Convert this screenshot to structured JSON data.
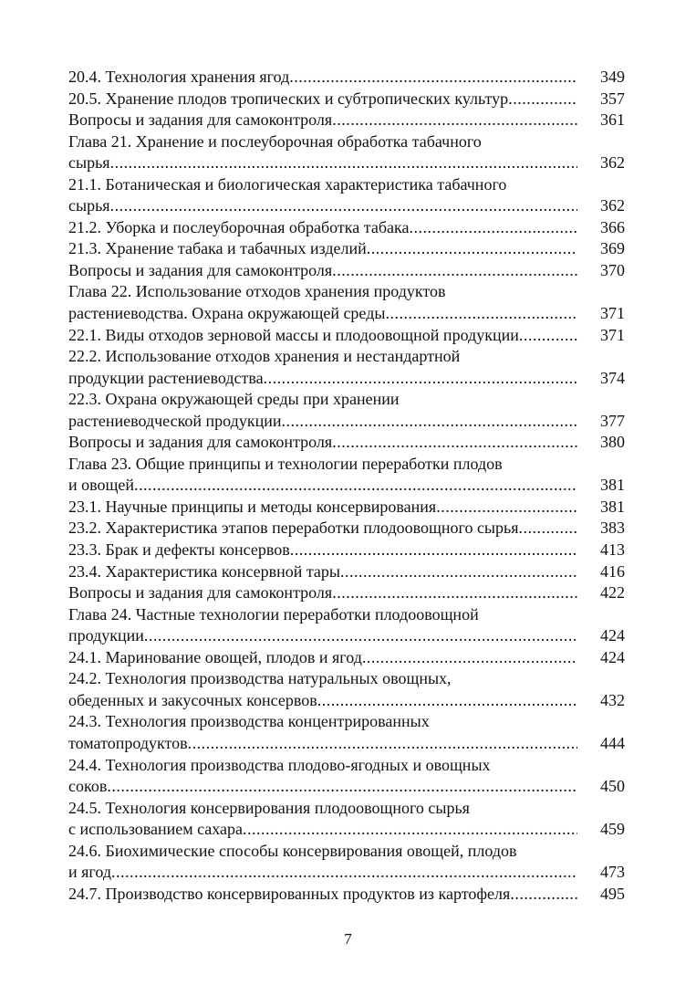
{
  "toc": [
    {
      "lines": [
        "20.4. Технология хранения ягод"
      ],
      "page": "349"
    },
    {
      "lines": [
        "20.5. Хранение плодов тропических и субтропических культур"
      ],
      "page": "357"
    },
    {
      "lines": [
        "Вопросы и задания для самоконтроля"
      ],
      "page": "361"
    },
    {
      "lines": [
        "Глава 21. Хранение и послеуборочная обработка табачного",
        "сырья"
      ],
      "page": "362"
    },
    {
      "lines": [
        "21.1. Ботаническая и биологическая характеристика табачного",
        "сырья"
      ],
      "page": "362"
    },
    {
      "lines": [
        "21.2. Уборка и послеуборочная обработка табака"
      ],
      "page": "366"
    },
    {
      "lines": [
        "21.3. Хранение табака и табачных изделий"
      ],
      "page": "369"
    },
    {
      "lines": [
        "Вопросы и задания для самоконтроля"
      ],
      "page": "370"
    },
    {
      "lines": [
        "Глава 22. Использование отходов хранения продуктов",
        "растениеводства. Охрана окружающей среды"
      ],
      "page": "371"
    },
    {
      "lines": [
        "22.1. Виды отходов зерновой массы и плодоовощной продукции"
      ],
      "page": "371"
    },
    {
      "lines": [
        "22.2. Использование отходов хранения и нестандартной",
        "продукции растениеводства"
      ],
      "page": "374"
    },
    {
      "lines": [
        "22.3. Охрана окружающей среды при хранении",
        "растениеводческой продукции"
      ],
      "page": "377"
    },
    {
      "lines": [
        "Вопросы и задания для самоконтроля"
      ],
      "page": "380"
    },
    {
      "lines": [
        "Глава 23. Общие принципы и технологии переработки плодов",
        "и овощей"
      ],
      "page": "381"
    },
    {
      "lines": [
        "23.1. Научные принципы и методы консервирования"
      ],
      "page": "381"
    },
    {
      "lines": [
        "23.2. Характеристика этапов переработки плодоовощного сырья"
      ],
      "page": "383"
    },
    {
      "lines": [
        "23.3. Брак и дефекты консервов"
      ],
      "page": "413"
    },
    {
      "lines": [
        "23.4. Характеристика консервной тары"
      ],
      "page": "416"
    },
    {
      "lines": [
        "Вопросы и задания для самоконтроля"
      ],
      "page": "422"
    },
    {
      "lines": [
        "Глава 24. Частные технологии переработки плодоовощной",
        "продукции"
      ],
      "page": "424"
    },
    {
      "lines": [
        "24.1. Маринование овощей, плодов и ягод"
      ],
      "page": "424"
    },
    {
      "lines": [
        "24.2. Технология производства натуральных овощных,",
        "обеденных и закусочных консервов"
      ],
      "page": "432"
    },
    {
      "lines": [
        "24.3. Технология производства концентрированных",
        "томатопродуктов"
      ],
      "page": "444"
    },
    {
      "lines": [
        "24.4. Технология производства плодово-ягодных и овощных",
        "соков"
      ],
      "page": "450"
    },
    {
      "lines": [
        "24.5. Технология консервирования плодоовощного сырья",
        "с использованием сахара"
      ],
      "page": "459"
    },
    {
      "lines": [
        "24.6. Биохимические способы консервирования овощей, плодов",
        "и ягод"
      ],
      "page": "473"
    },
    {
      "lines": [
        "24.7. Производство консервированных продуктов из картофеля"
      ],
      "page": "495"
    }
  ],
  "page_number": "7"
}
